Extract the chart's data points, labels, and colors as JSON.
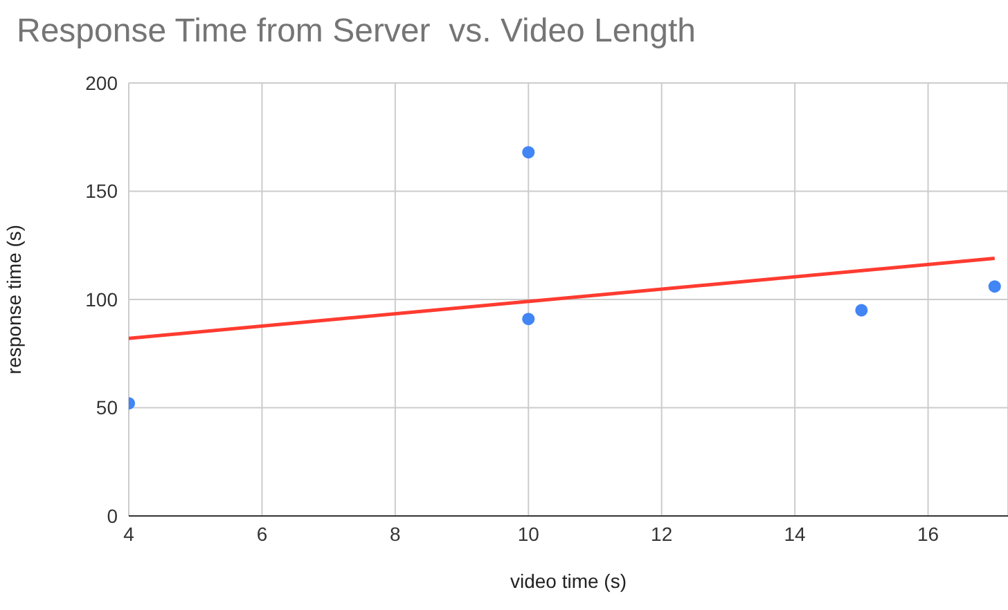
{
  "chart_data": {
    "type": "scatter",
    "title": "Response Time from Server  vs. Video Length",
    "xlabel": "video time (s)",
    "ylabel": "response time (s)",
    "x": [
      4,
      10,
      10,
      15,
      17
    ],
    "series": [
      {
        "color": "#4285f4",
        "marker": "circle",
        "values": [
          52,
          168,
          91,
          95,
          106
        ]
      },
      {
        "type": "line",
        "color": "#ff3b30",
        "x": [
          4,
          17
        ],
        "values": [
          82,
          119
        ]
      }
    ],
    "xlim": [
      4,
      17.2
    ],
    "xticks": [
      4,
      6,
      8,
      10,
      12,
      14,
      16
    ],
    "ylim": [
      0,
      200
    ],
    "yticks": [
      0,
      50,
      100,
      150,
      200
    ],
    "grid": true,
    "line_style": "solid"
  }
}
